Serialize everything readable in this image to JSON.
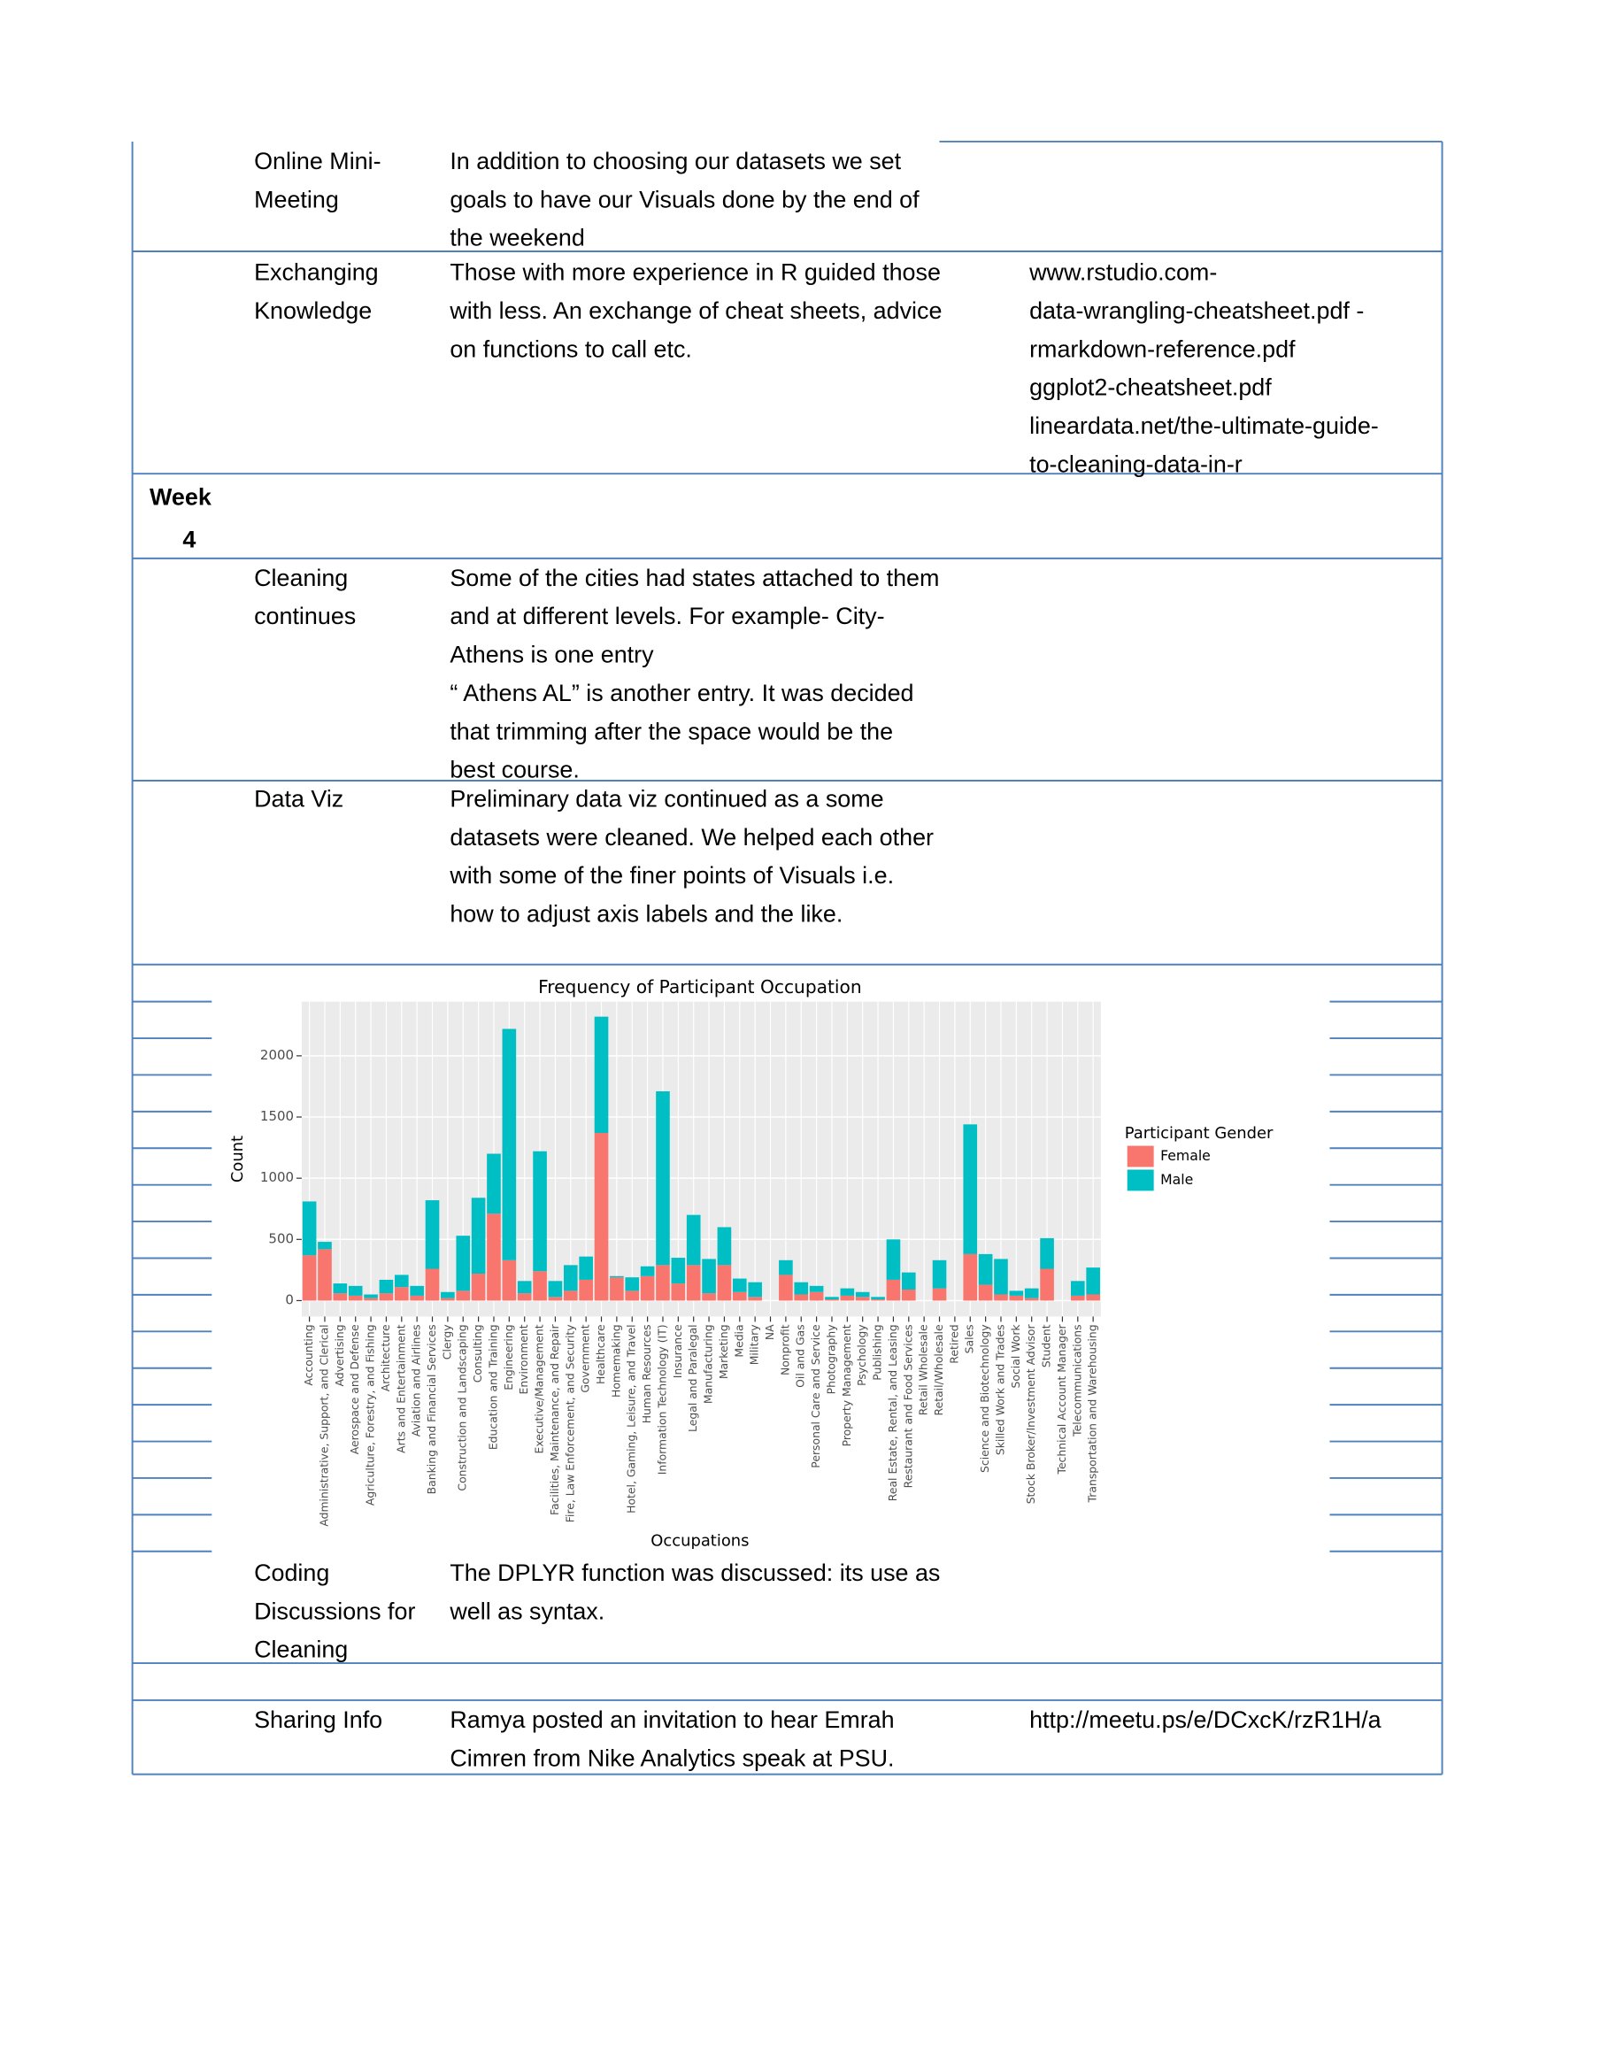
{
  "document": {
    "week": [
      "Week",
      "4"
    ],
    "rows": [
      {
        "label": [
          "Online Mini-",
          "Meeting"
        ],
        "text": [
          "In addition to choosing our datasets we set",
          "goals to have our Visuals done by the end of",
          "the weekend"
        ]
      },
      {
        "label": [
          "Exchanging",
          "Knowledge"
        ],
        "text": [
          "Those with more experience in R guided those",
          "with less.  An exchange of cheat sheets, advice",
          "on functions to call etc."
        ],
        "resources": [
          "www.rstudio.com-",
          "data-wrangling-cheatsheet.pdf -",
          "rmarkdown-reference.pdf",
          "ggplot2-cheatsheet.pdf",
          "lineardata.net/the-ultimate-guide-",
          "to-cleaning-data-in-r"
        ]
      },
      {
        "label": [
          "Cleaning",
          "continues"
        ],
        "text": [
          "Some of the cities had states attached to them",
          "and  at different levels.  For example- City-",
          "Athens is one entry",
          "“ Athens AL” is another entry. It was decided",
          "that trimming after the space would be the",
          "best course."
        ]
      },
      {
        "label": [
          "Data Viz"
        ],
        "text": [
          "Preliminary data viz continued as a some",
          "datasets were cleaned. We helped each other",
          "with some of the finer points of Visuals i.e.",
          "how to adjust axis labels and the like."
        ]
      },
      {
        "label": [
          "Coding",
          "Discussions for",
          "Cleaning"
        ],
        "text": [
          "The DPLYR function was discussed: its use as",
          "well as syntax."
        ]
      },
      {
        "label": [
          "Sharing Info"
        ],
        "text": [
          "Ramya posted an invitation to hear Emrah",
          "Cimren from Nike Analytics speak at PSU."
        ],
        "resources": [
          "http://meetu.ps/e/DCxcK/rzR1H/a"
        ]
      }
    ]
  },
  "chart_data": {
    "type": "stacked_bar",
    "title": "Frequency of Participant Occupation",
    "xlabel": "Occupations",
    "ylabel": "Count",
    "legend_title": "Participant Gender",
    "categories": [
      "Accounting",
      "Administrative, Support, and Clerical",
      "Advertising",
      "Aerospace and Defense",
      "Agriculture, Forestry, and Fishing",
      "Architecture",
      "Arts and Entertainment",
      "Aviation and Airlines",
      "Banking and Financial Services",
      "Clergy",
      "Construction and Landscaping",
      "Consulting",
      "Education and Training",
      "Engineering",
      "Environment",
      "Executive/Management",
      "Facilities, Maintenance, and Repair",
      "Fire, Law Enforcement, and Security",
      "Government",
      "Healthcare",
      "Homemaking",
      "Hotel, Gaming, Leisure, and Travel",
      "Human Resources",
      "Information Technology (IT)",
      "Insurance",
      "Legal and Paralegal",
      "Manufacturing",
      "Marketing",
      "Media",
      "Military",
      "NA",
      "Nonprofit",
      "Oil and Gas",
      "Personal Care and Service",
      "Photography",
      "Property Management",
      "Psychology",
      "Publishing",
      "Real Estate, Rental, and Leasing",
      "Restaurant and Food Services",
      "Retail Wholesale",
      "Retail/Wholesale",
      "Retired",
      "Sales",
      "Science and Biotechnology",
      "Skilled Work and Trades",
      "Social Work",
      "Stock Broker/Investment Advisor",
      "Student",
      "Technical Account Manager",
      "Telecommunications",
      "Transportation and Warehousing"
    ],
    "series": [
      {
        "name": "Female",
        "color": "#F8766D",
        "values": [
          370,
          420,
          60,
          40,
          20,
          60,
          110,
          40,
          260,
          20,
          80,
          220,
          710,
          330,
          60,
          240,
          30,
          80,
          170,
          1370,
          190,
          80,
          200,
          290,
          140,
          290,
          60,
          290,
          70,
          30,
          0,
          210,
          50,
          70,
          10,
          40,
          30,
          10,
          170,
          90,
          0,
          100,
          0,
          380,
          130,
          50,
          40,
          20,
          260,
          0,
          40,
          50
        ]
      },
      {
        "name": "Male",
        "color": "#00BFC4",
        "values": [
          440,
          60,
          80,
          80,
          30,
          110,
          100,
          80,
          560,
          50,
          450,
          620,
          490,
          1890,
          100,
          980,
          130,
          210,
          190,
          950,
          10,
          110,
          80,
          1420,
          210,
          410,
          280,
          310,
          110,
          120,
          0,
          120,
          100,
          50,
          20,
          60,
          40,
          20,
          330,
          140,
          0,
          230,
          0,
          1060,
          250,
          290,
          40,
          80,
          250,
          0,
          120,
          220
        ]
      }
    ],
    "ylim": [
      -130,
      2443
    ],
    "yticks": [
      0,
      500,
      1000,
      1500,
      2000
    ],
    "grid": true
  }
}
